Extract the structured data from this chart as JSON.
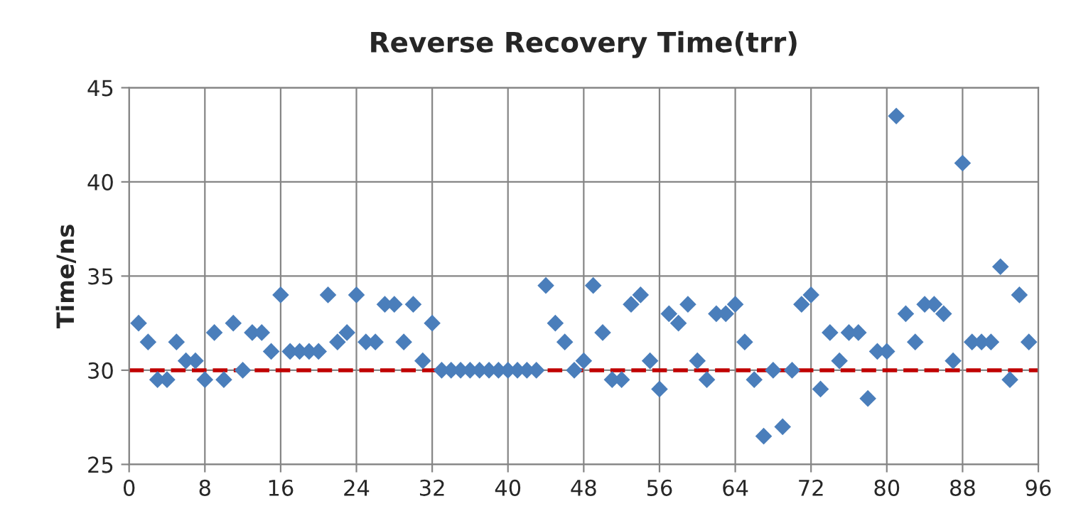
{
  "chart_data": {
    "type": "scatter",
    "title": "Reverse Recovery Time(trr)",
    "ylabel": "Time/ns",
    "x": [
      1,
      2,
      3,
      4,
      5,
      6,
      7,
      8,
      9,
      10,
      11,
      12,
      13,
      14,
      15,
      16,
      17,
      18,
      19,
      20,
      21,
      22,
      23,
      24,
      25,
      26,
      27,
      28,
      29,
      30,
      31,
      32,
      33,
      34,
      35,
      36,
      37,
      38,
      39,
      40,
      41,
      42,
      43,
      44,
      45,
      46,
      47,
      48,
      49,
      50,
      51,
      52,
      53,
      54,
      55,
      56,
      57,
      58,
      59,
      60,
      61,
      62,
      63,
      64,
      65,
      66,
      67,
      68,
      69,
      70,
      71,
      72,
      73,
      74,
      75,
      76,
      77,
      78,
      79,
      80,
      81,
      82,
      83,
      84,
      85,
      86,
      87,
      88,
      89,
      90,
      91,
      92,
      93,
      94,
      95
    ],
    "series": [
      {
        "color": "#4a7ebb",
        "values": [
          32.5,
          31.5,
          29.5,
          29.5,
          31.5,
          30.5,
          30.5,
          29.5,
          32,
          29.5,
          32.5,
          30,
          32,
          32,
          31,
          34,
          31,
          31,
          31,
          31,
          34,
          31.5,
          32,
          34,
          31.5,
          31.5,
          33.5,
          33.5,
          31.5,
          33.5,
          30.5,
          32.5,
          30,
          30,
          30,
          30,
          30,
          30,
          30,
          30,
          30,
          30,
          30,
          34.5,
          32.5,
          31.5,
          30,
          30.5,
          34.5,
          32,
          29.5,
          29.5,
          33.5,
          34,
          30.5,
          29,
          33,
          32.5,
          33.5,
          30.5,
          29.5,
          33,
          33,
          33.5,
          31.5,
          29.5,
          26.5,
          30,
          27,
          30,
          33.5,
          34,
          29,
          32,
          30.5,
          32,
          32,
          28.5,
          31,
          31,
          43.5,
          33,
          31.5,
          33.5,
          33.5,
          33,
          30.5,
          41,
          31.5,
          31.5,
          31.5,
          35.5,
          29.5,
          34,
          31.5
        ]
      }
    ],
    "xlim": [
      0,
      96
    ],
    "xticks": [
      0,
      8,
      16,
      24,
      32,
      40,
      48,
      56,
      64,
      72,
      80,
      88,
      96
    ],
    "ylim": [
      25,
      45
    ],
    "yticks": [
      25,
      30,
      35,
      40,
      45
    ],
    "ref_lines": [
      {
        "axis": "y",
        "value": 30,
        "color": "#c00000",
        "line_style": "dashed"
      }
    ],
    "grid": true,
    "marker": "diamond",
    "legend": false
  }
}
